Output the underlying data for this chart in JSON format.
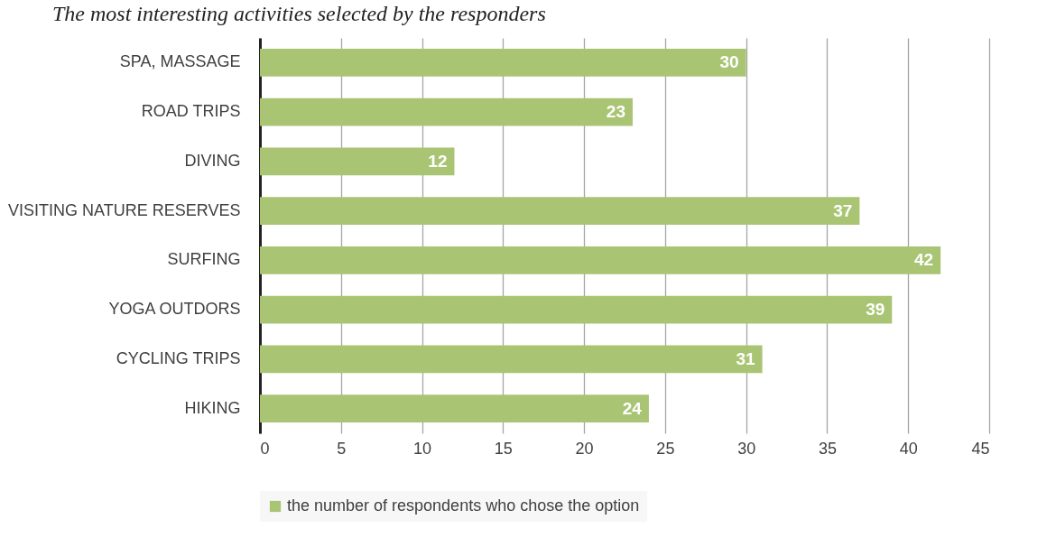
{
  "chart_data": {
    "type": "bar",
    "orientation": "horizontal",
    "title": "The most interesting activities selected by the responders",
    "categories": [
      "SPA, MASSAGE",
      "ROAD TRIPS",
      "DIVING",
      "VISITING NATURE RESERVES",
      "SURFING",
      "YOGA OUTDORS",
      "CYCLING TRIPS",
      "HIKING"
    ],
    "series": [
      {
        "name": "the number of respondents who chose the option",
        "color": "#a9c574",
        "values": [
          30,
          23,
          12,
          37,
          42,
          39,
          31,
          24
        ]
      }
    ],
    "xlim": [
      0,
      45
    ],
    "xticks": [
      0,
      5,
      10,
      15,
      20,
      25,
      30,
      35,
      40,
      45
    ],
    "grid": "x",
    "legend": "bottom",
    "data_labels": true
  }
}
